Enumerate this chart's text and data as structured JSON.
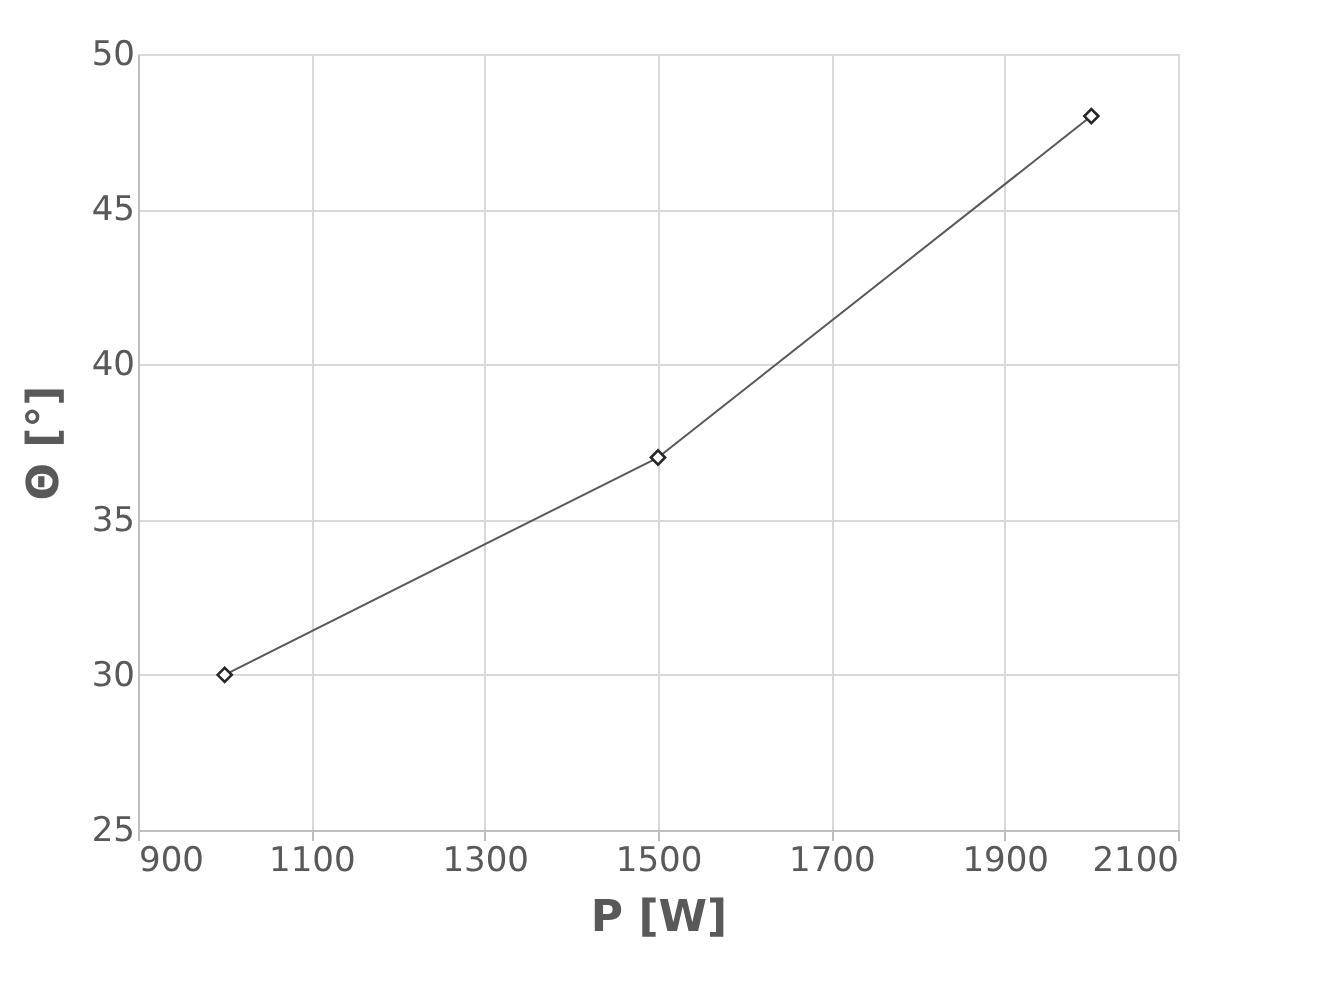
{
  "chart_data": {
    "type": "line",
    "xlabel": "P [W]",
    "ylabel": "Θ [°]",
    "x": [
      1000,
      1500,
      2000
    ],
    "series": [
      {
        "color": "#595959",
        "values": [
          30,
          37,
          48
        ]
      }
    ],
    "xlim": [
      900,
      2100
    ],
    "xticks": [
      900,
      1100,
      1300,
      1500,
      1700,
      1900,
      2100
    ],
    "ylim": [
      25,
      50
    ],
    "yticks": [
      25,
      30,
      35,
      40,
      45,
      50
    ],
    "grid": true,
    "marker": "diamond",
    "line_style": "solid"
  }
}
